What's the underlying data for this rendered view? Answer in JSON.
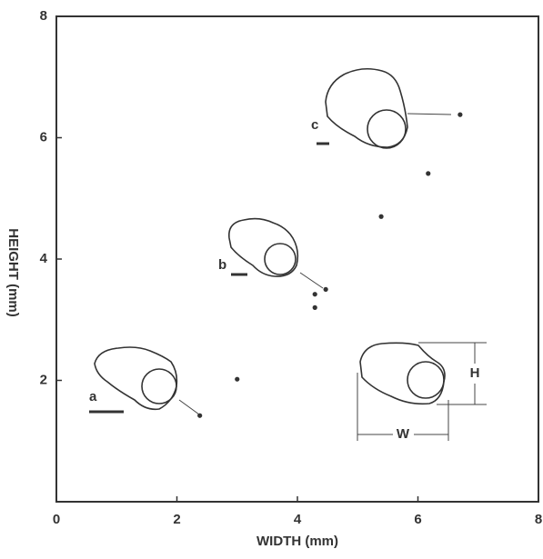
{
  "chart_data": {
    "type": "scatter",
    "x_label": "WIDTH (mm)",
    "y_label": "HEIGHT (mm)",
    "x": [
      2.38,
      3.0,
      4.29,
      4.29,
      4.47,
      5.39,
      6.17,
      6.7
    ],
    "y": [
      1.42,
      2.02,
      3.42,
      3.2,
      3.5,
      4.7,
      5.41,
      6.38
    ],
    "color": "#333333",
    "xlim": [
      0,
      8
    ],
    "ylim": [
      0,
      8
    ],
    "xticks": [
      0,
      2,
      4,
      6,
      8
    ],
    "yticks": [
      2,
      4,
      6,
      8
    ],
    "annotations": [
      "a",
      "b",
      "c",
      "H",
      "W"
    ]
  }
}
